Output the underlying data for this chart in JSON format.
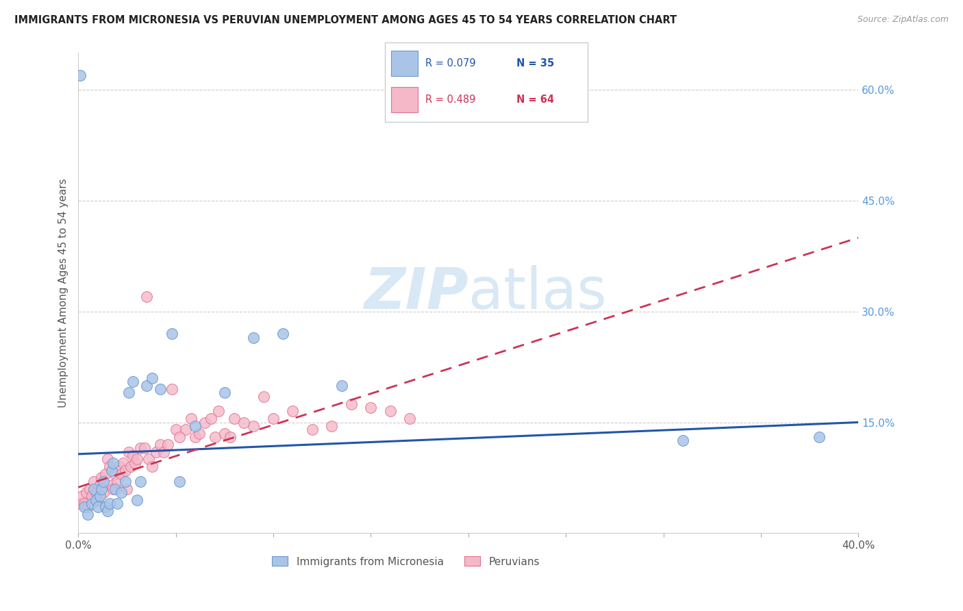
{
  "title": "IMMIGRANTS FROM MICRONESIA VS PERUVIAN UNEMPLOYMENT AMONG AGES 45 TO 54 YEARS CORRELATION CHART",
  "source": "Source: ZipAtlas.com",
  "ylabel": "Unemployment Among Ages 45 to 54 years",
  "xlim": [
    0.0,
    0.4
  ],
  "ylim": [
    0.0,
    0.65
  ],
  "xticks": [
    0.0,
    0.05,
    0.1,
    0.15,
    0.2,
    0.25,
    0.3,
    0.35,
    0.4
  ],
  "yticks_right": [
    0.15,
    0.3,
    0.45,
    0.6
  ],
  "ytick_right_labels": [
    "15.0%",
    "30.0%",
    "45.0%",
    "60.0%"
  ],
  "color_blue_fill": "#aac4e8",
  "color_blue_edge": "#6699cc",
  "color_pink_fill": "#f4b8c8",
  "color_pink_edge": "#e07090",
  "color_line_blue": "#2255aa",
  "color_line_pink": "#cc3355",
  "watermark_color": "#d8e8f5",
  "blue_scatter_x": [
    0.001,
    0.003,
    0.005,
    0.007,
    0.008,
    0.009,
    0.01,
    0.011,
    0.012,
    0.013,
    0.014,
    0.015,
    0.016,
    0.017,
    0.018,
    0.019,
    0.02,
    0.022,
    0.024,
    0.026,
    0.028,
    0.03,
    0.032,
    0.035,
    0.038,
    0.042,
    0.048,
    0.052,
    0.06,
    0.075,
    0.09,
    0.105,
    0.135,
    0.31,
    0.38
  ],
  "blue_scatter_y": [
    0.62,
    0.035,
    0.025,
    0.04,
    0.06,
    0.045,
    0.035,
    0.05,
    0.06,
    0.07,
    0.035,
    0.03,
    0.04,
    0.085,
    0.095,
    0.06,
    0.04,
    0.055,
    0.07,
    0.19,
    0.205,
    0.045,
    0.07,
    0.2,
    0.21,
    0.195,
    0.27,
    0.07,
    0.145,
    0.19,
    0.265,
    0.27,
    0.2,
    0.125,
    0.13
  ],
  "pink_scatter_x": [
    0.001,
    0.002,
    0.003,
    0.004,
    0.005,
    0.006,
    0.007,
    0.008,
    0.009,
    0.01,
    0.011,
    0.012,
    0.013,
    0.014,
    0.015,
    0.016,
    0.017,
    0.018,
    0.019,
    0.02,
    0.021,
    0.022,
    0.023,
    0.024,
    0.025,
    0.026,
    0.027,
    0.028,
    0.029,
    0.03,
    0.032,
    0.034,
    0.036,
    0.038,
    0.04,
    0.042,
    0.044,
    0.046,
    0.05,
    0.055,
    0.06,
    0.065,
    0.07,
    0.075,
    0.08,
    0.09,
    0.1,
    0.11,
    0.12,
    0.13,
    0.14,
    0.15,
    0.16,
    0.17,
    0.035,
    0.048,
    0.052,
    0.058,
    0.062,
    0.068,
    0.072,
    0.078,
    0.085,
    0.095
  ],
  "pink_scatter_y": [
    0.04,
    0.05,
    0.04,
    0.055,
    0.035,
    0.06,
    0.05,
    0.07,
    0.055,
    0.045,
    0.065,
    0.075,
    0.055,
    0.08,
    0.1,
    0.09,
    0.065,
    0.06,
    0.08,
    0.07,
    0.09,
    0.08,
    0.095,
    0.085,
    0.06,
    0.11,
    0.09,
    0.105,
    0.095,
    0.1,
    0.115,
    0.115,
    0.1,
    0.09,
    0.11,
    0.12,
    0.11,
    0.12,
    0.14,
    0.14,
    0.13,
    0.15,
    0.13,
    0.135,
    0.155,
    0.145,
    0.155,
    0.165,
    0.14,
    0.145,
    0.175,
    0.17,
    0.165,
    0.155,
    0.32,
    0.195,
    0.13,
    0.155,
    0.135,
    0.155,
    0.165,
    0.13,
    0.15,
    0.185
  ],
  "blue_trend_x0": 0.0,
  "blue_trend_x1": 0.4,
  "blue_trend_y0": 0.107,
  "blue_trend_y1": 0.15,
  "pink_trend_x0": 0.0,
  "pink_trend_x1": 0.4,
  "pink_trend_y0": 0.062,
  "pink_trend_y1": 0.4
}
